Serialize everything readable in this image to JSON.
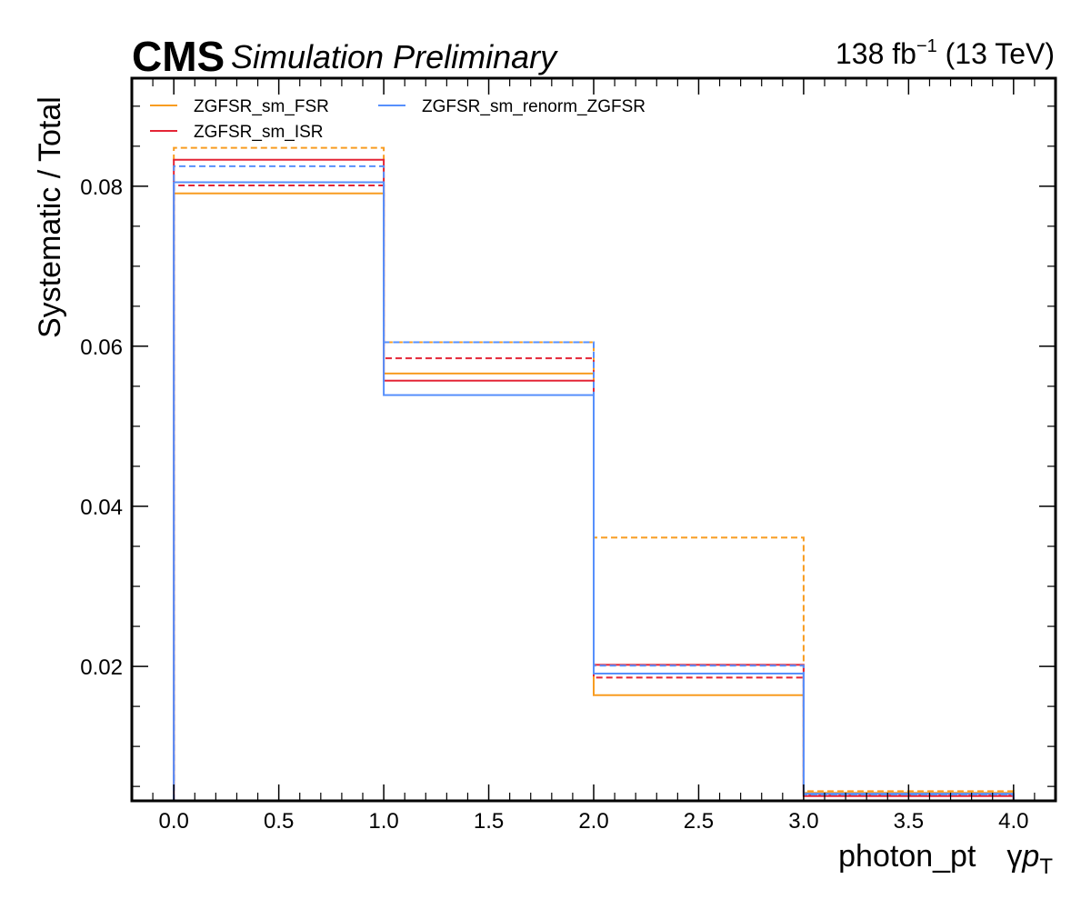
{
  "header": {
    "cms": "CMS",
    "sub": "Simulation Preliminary",
    "lumi_value": "138 fb",
    "lumi_exp": "−1",
    "lumi_energy": " (13 TeV)"
  },
  "axes": {
    "xlabel_main": "photon_pt",
    "xlabel_gamma": "γ",
    "xlabel_p": "p",
    "xlabel_sub": "T",
    "ylabel": "Systematic / Total"
  },
  "chart_data": {
    "type": "line",
    "style": "step histogram, solid = up variation, dashed = down variation",
    "xlabel": "photon_pt   γpT",
    "ylabel": "Systematic / Total",
    "xlim": [
      -0.2,
      4.2
    ],
    "ylim": [
      0.0032,
      0.0935
    ],
    "bin_edges": [
      0,
      1,
      2,
      3,
      4
    ],
    "xticks": [
      0.0,
      0.5,
      1.0,
      1.5,
      2.0,
      2.5,
      3.0,
      3.5,
      4.0
    ],
    "xtick_labels": [
      "0.0",
      "0.5",
      "1.0",
      "1.5",
      "2.0",
      "2.5",
      "3.0",
      "3.5",
      "4.0"
    ],
    "yticks": [
      0.02,
      0.04,
      0.06,
      0.08
    ],
    "ytick_labels": [
      "0.02",
      "0.04",
      "0.06",
      "0.08"
    ],
    "grid": false,
    "legend_position": "top-left, two columns",
    "series": [
      {
        "name": "ZGFSR_sm_FSR",
        "color": "#f89c20",
        "up": [
          0.0791,
          0.0566,
          0.0164,
          0.0042
        ],
        "down": [
          0.0848,
          0.0605,
          0.0361,
          0.0044
        ]
      },
      {
        "name": "ZGFSR_sm_ISR",
        "color": "#e42536",
        "up": [
          0.0833,
          0.0557,
          0.0202,
          0.0038
        ],
        "down": [
          0.0801,
          0.0585,
          0.0186,
          0.0039
        ]
      },
      {
        "name": "ZGFSR_sm_renorm_ZGFSR",
        "color": "#5790fc",
        "up": [
          0.0805,
          0.0539,
          0.0191,
          0.0041
        ],
        "down": [
          0.0825,
          0.0605,
          0.0201,
          0.004
        ]
      }
    ]
  }
}
